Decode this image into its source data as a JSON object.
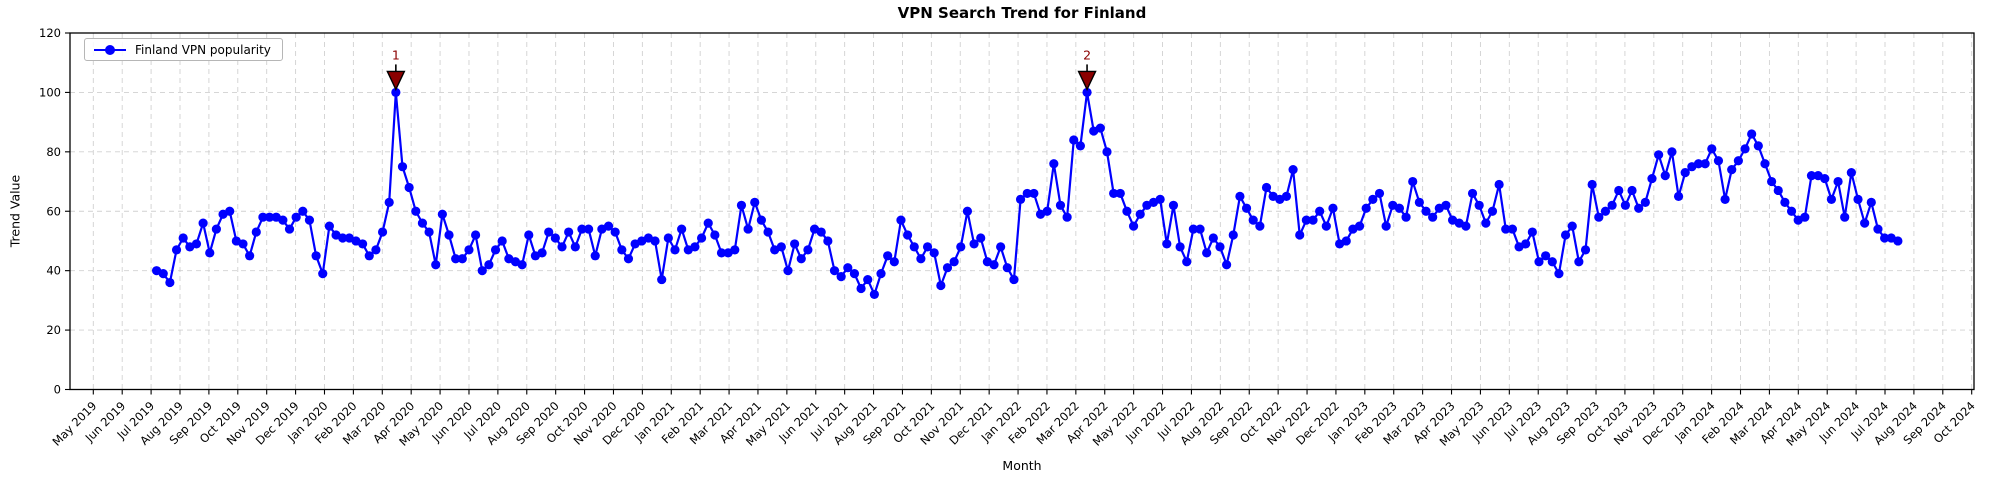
{
  "chart_data": {
    "type": "line",
    "title": "VPN Search Trend for Finland",
    "xlabel": "Month",
    "ylabel": "Trend Value",
    "ylim": [
      0,
      120
    ],
    "yticks": [
      0,
      20,
      40,
      60,
      80,
      100,
      120
    ],
    "grid": true,
    "legend_position": "upper left",
    "x_tick_labels": [
      "May 2019",
      "Jun 2019",
      "Jul 2019",
      "Aug 2019",
      "Sep 2019",
      "Oct 2019",
      "Nov 2019",
      "Dec 2019",
      "Jan 2020",
      "Feb 2020",
      "Mar 2020",
      "Apr 2020",
      "May 2020",
      "Jun 2020",
      "Jul 2020",
      "Aug 2020",
      "Sep 2020",
      "Oct 2020",
      "Nov 2020",
      "Dec 2020",
      "Jan 2021",
      "Feb 2021",
      "Mar 2021",
      "Apr 2021",
      "May 2021",
      "Jun 2021",
      "Jul 2021",
      "Aug 2021",
      "Sep 2021",
      "Oct 2021",
      "Nov 2021",
      "Dec 2021",
      "Jan 2022",
      "Feb 2022",
      "Mar 2022",
      "Apr 2022",
      "May 2022",
      "Jun 2022",
      "Jul 2022",
      "Aug 2022",
      "Sep 2022",
      "Oct 2022",
      "Nov 2022",
      "Dec 2022",
      "Jan 2023",
      "Feb 2023",
      "Mar 2023",
      "Apr 2023",
      "May 2023",
      "Jun 2023",
      "Jul 2023",
      "Aug 2023",
      "Sep 2023",
      "Oct 2023",
      "Nov 2023",
      "Dec 2023",
      "Jan 2024",
      "Feb 2024",
      "Mar 2024",
      "Apr 2024",
      "May 2024",
      "Jun 2024",
      "Jul 2024",
      "Aug 2024",
      "Sep 2024",
      "Oct 2024"
    ],
    "series": [
      {
        "name": "Finland VPN popularity",
        "color": "#0000ff",
        "marker": "circle",
        "interval": "weekly",
        "start_label": "Jul 2019",
        "values": [
          40,
          39,
          36,
          47,
          51,
          48,
          49,
          56,
          46,
          54,
          59,
          60,
          50,
          49,
          45,
          53,
          58,
          58,
          58,
          57,
          54,
          58,
          60,
          57,
          45,
          39,
          55,
          52,
          51,
          51,
          50,
          49,
          45,
          47,
          53,
          63,
          100,
          75,
          68,
          60,
          56,
          53,
          42,
          59,
          52,
          44,
          44,
          47,
          52,
          40,
          42,
          47,
          50,
          44,
          43,
          42,
          52,
          45,
          46,
          53,
          51,
          48,
          53,
          48,
          54,
          54,
          45,
          54,
          55,
          53,
          47,
          44,
          49,
          50,
          51,
          50,
          37,
          51,
          47,
          54,
          47,
          48,
          51,
          56,
          52,
          46,
          46,
          47,
          62,
          54,
          63,
          57,
          53,
          47,
          48,
          40,
          49,
          44,
          47,
          54,
          53,
          50,
          40,
          38,
          41,
          39,
          34,
          37,
          32,
          39,
          45,
          43,
          57,
          52,
          48,
          44,
          48,
          46,
          35,
          41,
          43,
          48,
          60,
          49,
          51,
          43,
          42,
          48,
          41,
          37,
          64,
          66,
          66,
          59,
          60,
          76,
          62,
          58,
          84,
          82,
          100,
          87,
          88,
          80,
          66,
          66,
          60,
          55,
          59,
          62,
          63,
          64,
          49,
          62,
          48,
          43,
          54,
          54,
          46,
          51,
          48,
          42,
          52,
          65,
          61,
          57,
          55,
          68,
          65,
          64,
          65,
          74,
          52,
          57,
          57,
          60,
          55,
          61,
          49,
          50,
          54,
          55,
          61,
          64,
          66,
          55,
          62,
          61,
          58,
          70,
          63,
          60,
          58,
          61,
          62,
          57,
          56,
          55,
          66,
          62,
          56,
          60,
          69,
          54,
          54,
          48,
          49,
          53,
          43,
          45,
          43,
          39,
          52,
          55,
          43,
          47,
          69,
          58,
          60,
          62,
          67,
          62,
          67,
          61,
          63,
          71,
          79,
          72,
          80,
          65,
          73,
          75,
          76,
          76,
          81,
          77,
          64,
          74,
          77,
          81,
          86,
          82,
          76,
          70,
          67,
          63,
          60,
          57,
          58,
          72,
          72,
          71,
          64,
          70,
          58,
          73,
          64,
          56,
          63,
          54,
          51,
          51,
          50
        ]
      }
    ],
    "annotations": [
      {
        "label": "1",
        "week_index": 36,
        "value": 100,
        "near_tick": "Mar 2020",
        "marker": "triangle-down",
        "color": "#8b0000"
      },
      {
        "label": "2",
        "week_index": 140,
        "value": 100,
        "near_tick": "Mar 2022",
        "marker": "triangle-down",
        "color": "#8b0000"
      }
    ]
  }
}
